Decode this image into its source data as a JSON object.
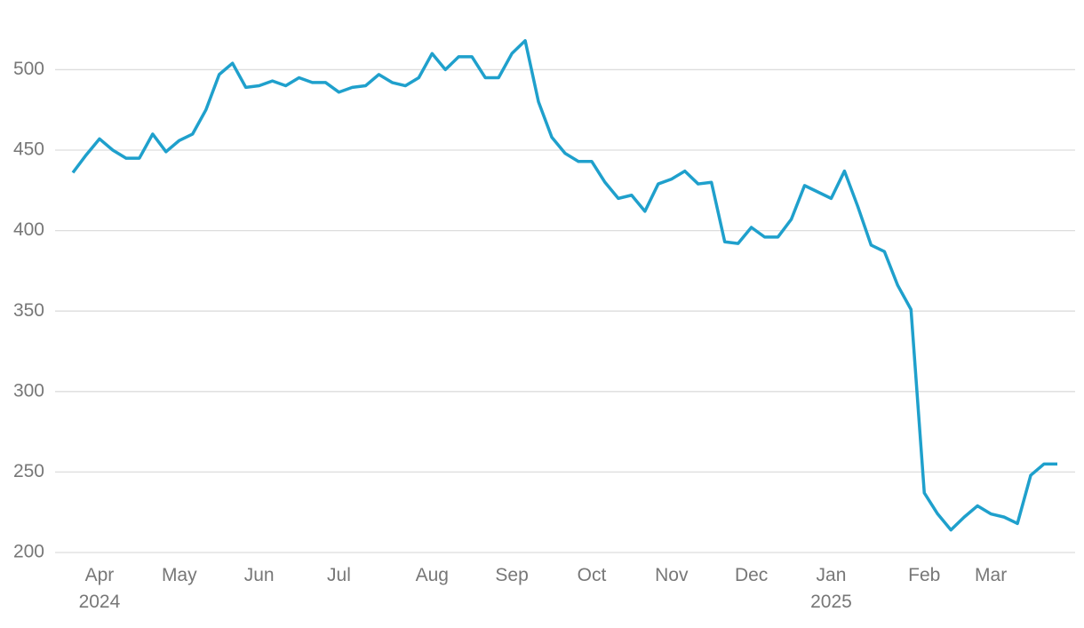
{
  "chart_data": {
    "type": "line",
    "categories": [
      null,
      null,
      "Apr 2024",
      null,
      null,
      null,
      null,
      null,
      "May",
      null,
      null,
      null,
      null,
      null,
      "Jun",
      null,
      null,
      null,
      null,
      null,
      "Jul",
      null,
      null,
      null,
      null,
      null,
      null,
      "Aug",
      null,
      null,
      null,
      null,
      null,
      "Sep",
      null,
      null,
      null,
      null,
      null,
      "Oct",
      null,
      null,
      null,
      null,
      null,
      "Nov",
      null,
      null,
      null,
      null,
      null,
      "Dec",
      null,
      null,
      null,
      null,
      null,
      "Jan 2025",
      null,
      null,
      null,
      null,
      null,
      null,
      "Feb",
      null,
      null,
      null,
      null,
      "Mar",
      null,
      null,
      null,
      null,
      null
    ],
    "series": [
      {
        "color": "#1fa0cc",
        "values": [
          436,
          447,
          457,
          450,
          445,
          445,
          460,
          449,
          456,
          460,
          475,
          497,
          504,
          489,
          490,
          493,
          490,
          495,
          492,
          492,
          486,
          489,
          490,
          497,
          492,
          490,
          495,
          510,
          500,
          508,
          508,
          495,
          495,
          510,
          518,
          480,
          458,
          448,
          443,
          443,
          430,
          420,
          422,
          412,
          429,
          432,
          437,
          429,
          430,
          393,
          392,
          402,
          396,
          396,
          407,
          428,
          424,
          420,
          437,
          415,
          391,
          387,
          366,
          351,
          237,
          224,
          214,
          222,
          229,
          224,
          222,
          218,
          248,
          255,
          255
        ]
      }
    ],
    "ylim": [
      200,
      535
    ],
    "yticks": [
      200,
      250,
      300,
      350,
      400,
      450,
      500
    ],
    "grid": true
  }
}
